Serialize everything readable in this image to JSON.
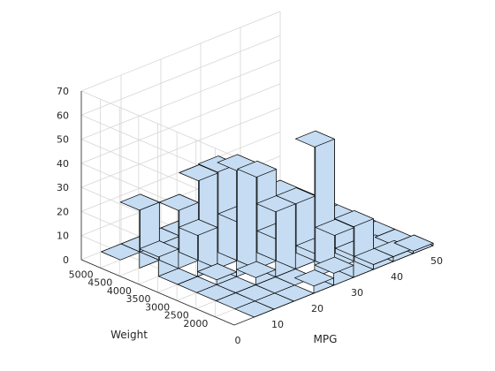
{
  "chart_data": {
    "type": "histogram3d",
    "xlabel": "MPG",
    "ylabel": "Weight",
    "zlabel": "",
    "x_ticks": [
      0,
      10,
      20,
      30,
      40,
      50
    ],
    "y_ticks": [
      2000,
      2500,
      3000,
      3500,
      4000,
      4500,
      5000
    ],
    "z_ticks": [
      0,
      10,
      20,
      30,
      40,
      50,
      60,
      70
    ],
    "xlim": [
      0,
      50
    ],
    "ylim": [
      1500,
      5500
    ],
    "zlim": [
      0,
      70
    ],
    "x_edges": [
      5,
      10,
      15,
      20,
      25,
      30,
      35,
      40,
      45,
      50
    ],
    "y_edges": [
      1500,
      2000,
      2500,
      3000,
      3500,
      4000,
      4500,
      5000,
      5500
    ],
    "counts": [
      [
        0,
        0,
        0,
        0,
        0,
        8,
        24,
        0
      ],
      [
        0,
        0,
        0,
        2,
        17,
        24,
        0,
        0
      ],
      [
        0,
        0,
        3,
        44,
        40,
        33,
        0,
        0
      ],
      [
        3,
        0,
        27,
        38,
        16,
        3,
        0,
        0
      ],
      [
        5,
        54,
        27,
        9,
        2,
        0,
        0,
        0
      ],
      [
        21,
        14,
        3,
        0,
        0,
        0,
        0,
        0
      ],
      [
        2,
        2,
        0,
        0,
        0,
        0,
        0,
        0
      ],
      [
        2,
        1,
        0,
        0,
        0,
        0,
        0,
        0
      ],
      [
        1,
        0,
        0,
        0,
        0,
        0,
        0,
        0
      ]
    ],
    "bar_color": "#c5dcf2",
    "edge_color": "#000000",
    "grid": true
  }
}
